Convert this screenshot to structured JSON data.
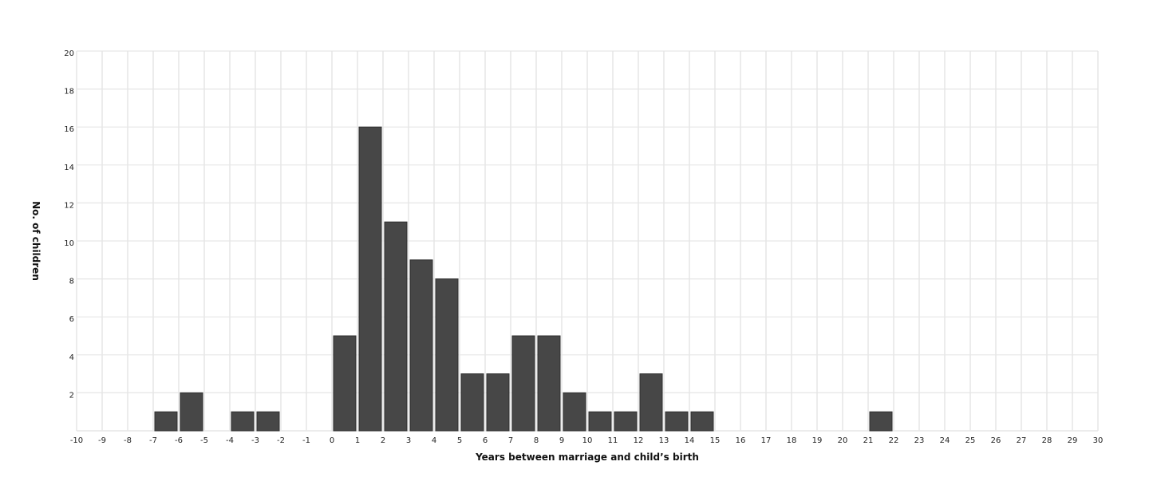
{
  "chart_data": {
    "type": "bar",
    "title": "",
    "xlabel": "Years between marriage and child’s birth",
    "ylabel": "No. of children",
    "xlim": [
      -10,
      30
    ],
    "ylim": [
      0,
      20
    ],
    "x_ticks": [
      -10,
      -9,
      -8,
      -7,
      -6,
      -5,
      -4,
      -3,
      -2,
      -1,
      0,
      1,
      2,
      3,
      4,
      5,
      6,
      7,
      8,
      9,
      10,
      11,
      12,
      13,
      14,
      15,
      16,
      17,
      18,
      19,
      20,
      21,
      22,
      23,
      24,
      25,
      26,
      27,
      28,
      29,
      30
    ],
    "y_ticks": [
      2,
      4,
      6,
      8,
      10,
      12,
      14,
      16,
      18,
      20
    ],
    "grid": true,
    "bars": [
      {
        "bin_start": -7,
        "bin_end": -6,
        "value": 1
      },
      {
        "bin_start": -6,
        "bin_end": -5,
        "value": 2
      },
      {
        "bin_start": -4,
        "bin_end": -3,
        "value": 1
      },
      {
        "bin_start": -3,
        "bin_end": -2,
        "value": 1
      },
      {
        "bin_start": 0,
        "bin_end": 1,
        "value": 5
      },
      {
        "bin_start": 1,
        "bin_end": 2,
        "value": 16
      },
      {
        "bin_start": 2,
        "bin_end": 3,
        "value": 11
      },
      {
        "bin_start": 3,
        "bin_end": 4,
        "value": 9
      },
      {
        "bin_start": 4,
        "bin_end": 5,
        "value": 8
      },
      {
        "bin_start": 5,
        "bin_end": 6,
        "value": 3
      },
      {
        "bin_start": 6,
        "bin_end": 7,
        "value": 3
      },
      {
        "bin_start": 7,
        "bin_end": 8,
        "value": 5
      },
      {
        "bin_start": 8,
        "bin_end": 9,
        "value": 5
      },
      {
        "bin_start": 9,
        "bin_end": 10,
        "value": 2
      },
      {
        "bin_start": 10,
        "bin_end": 11,
        "value": 1
      },
      {
        "bin_start": 11,
        "bin_end": 12,
        "value": 1
      },
      {
        "bin_start": 12,
        "bin_end": 13,
        "value": 3
      },
      {
        "bin_start": 13,
        "bin_end": 14,
        "value": 1
      },
      {
        "bin_start": 14,
        "bin_end": 15,
        "value": 1
      },
      {
        "bin_start": 21,
        "bin_end": 22,
        "value": 1
      }
    ],
    "colors": {
      "bar": "#474747",
      "bar_stroke": "#2e2e2e",
      "grid": "#e6e6e6"
    }
  }
}
